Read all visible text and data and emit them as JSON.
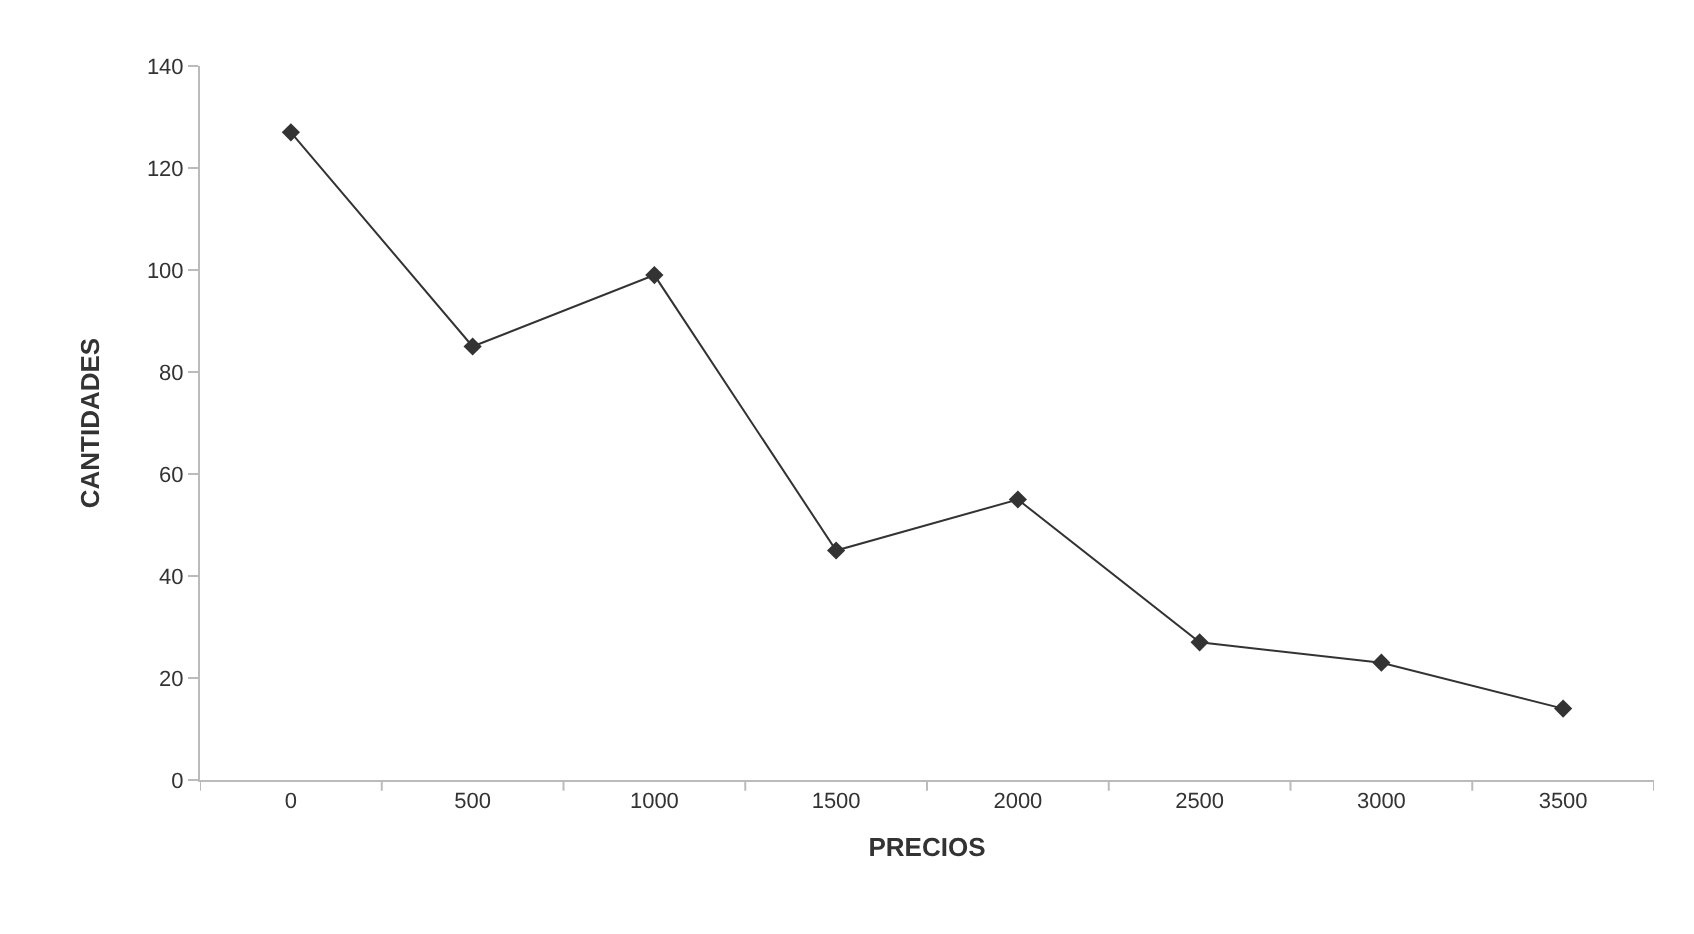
{
  "chart_data": {
    "type": "line",
    "xlabel": "PRECIOS",
    "ylabel": "CANTIDADES",
    "categories": [
      "0",
      "500",
      "1000",
      "1500",
      "2000",
      "2500",
      "3000",
      "3500"
    ],
    "series": [
      {
        "color": "#333333",
        "values": [
          127,
          85,
          99,
          45,
          55,
          27,
          23,
          14
        ]
      }
    ],
    "ylim": [
      0,
      140
    ],
    "yticks": [
      0,
      20,
      40,
      60,
      80,
      100,
      120,
      140
    ],
    "marker": "diamond",
    "line_style": "solid",
    "legend": false
  }
}
